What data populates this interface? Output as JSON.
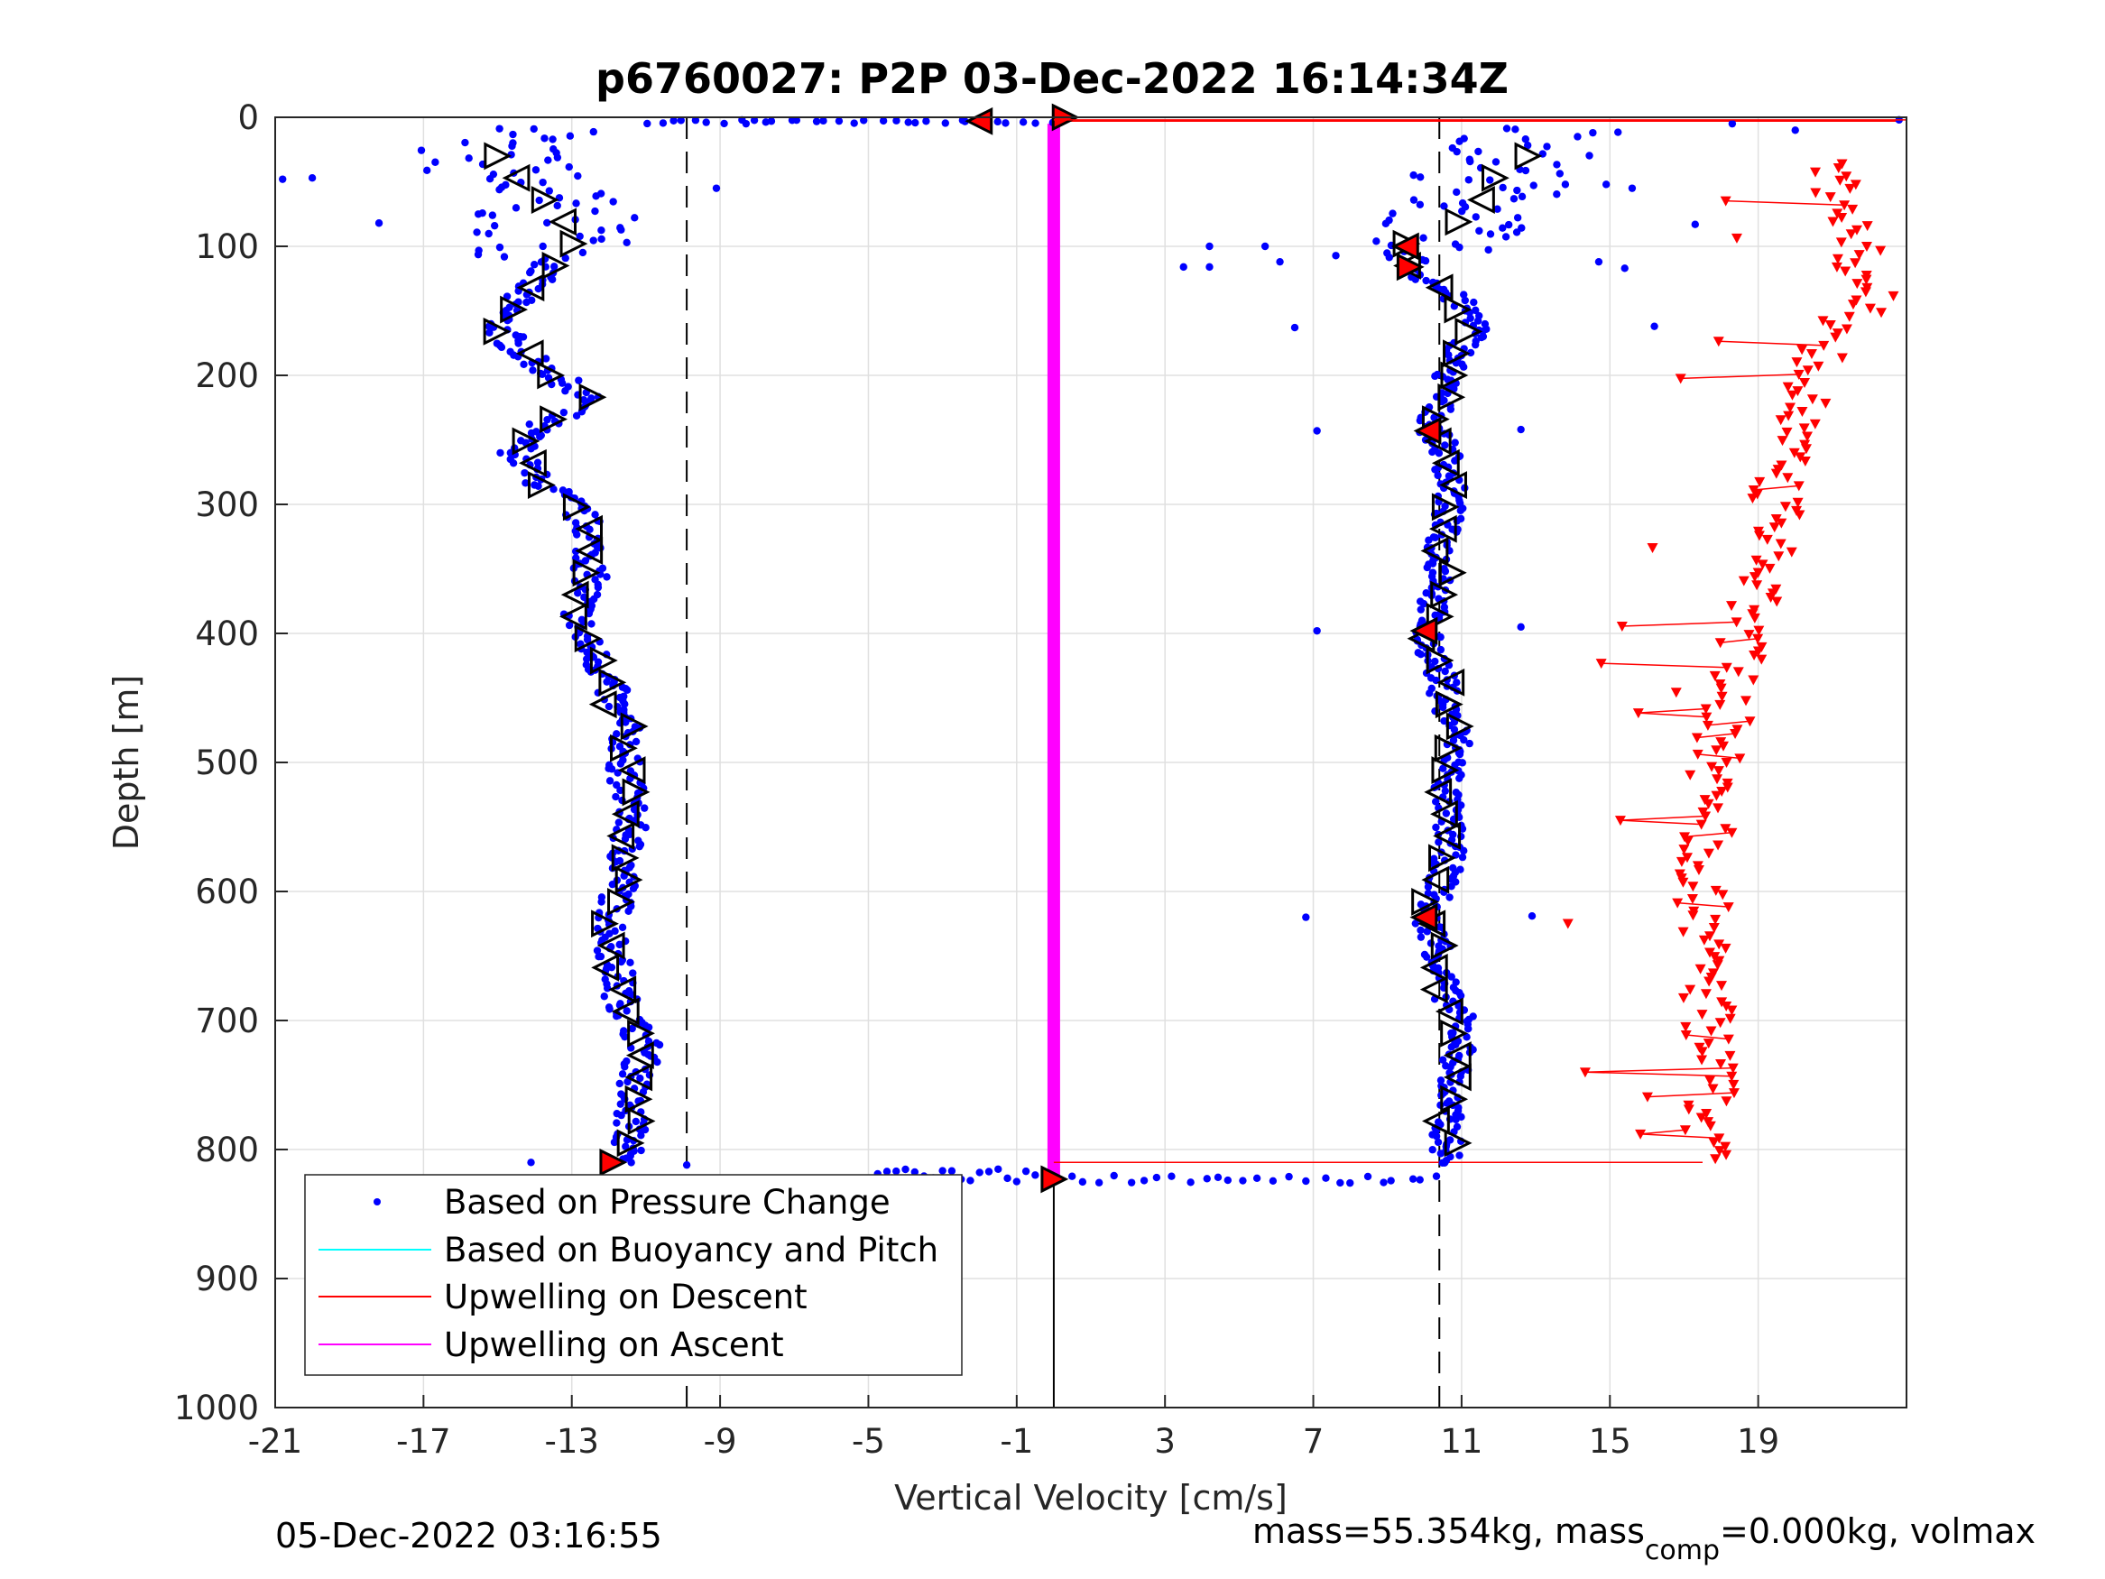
{
  "chart_data": {
    "type": "scatter",
    "title": "p6760027: P2P 03-Dec-2022 16:14:34Z",
    "xlabel": "Vertical Velocity [cm/s]",
    "ylabel": "Depth [m]",
    "xlim": [
      -21,
      23
    ],
    "ylim": [
      0,
      1000
    ],
    "y_reversed": true,
    "grid": true,
    "x_ticks": [
      "-21",
      "-17",
      "-13",
      "-9",
      "-5",
      "-1",
      "3",
      "7",
      "11",
      "15",
      "19"
    ],
    "x_tick_values": [
      -21,
      -17,
      -13,
      -9,
      -5,
      -1,
      3,
      7,
      11,
      15,
      19
    ],
    "y_ticks": [
      "0",
      "100",
      "200",
      "300",
      "400",
      "500",
      "600",
      "700",
      "800",
      "900",
      "1000"
    ],
    "y_tick_values": [
      0,
      100,
      200,
      300,
      400,
      500,
      600,
      700,
      800,
      900,
      1000
    ],
    "dashed_reference_lines_x": [
      -9.9,
      10.4
    ],
    "legend": {
      "position": "bottom-left",
      "entries": [
        {
          "label": "Based on Pressure Change",
          "color": "#0000ff",
          "marker": "dot"
        },
        {
          "label": "Based on Buoyancy and Pitch",
          "color": "#00ffff",
          "marker": "line"
        },
        {
          "label": "Upwelling on Descent",
          "color": "#ff0000",
          "marker": "line"
        },
        {
          "label": "Upwelling on Ascent",
          "color": "#ff00ff",
          "marker": "line"
        }
      ]
    },
    "colors": {
      "pressure": "#0000ff",
      "buoyancy": "#00ffff",
      "descent": "#ff0000",
      "ascent": "#ff00ff"
    },
    "series": [
      {
        "name": "Based on Pressure Change",
        "descent_profile": {
          "depth": [
            5,
            20,
            40,
            60,
            80,
            100,
            120,
            140,
            160,
            180,
            200,
            220,
            240,
            260,
            280,
            300,
            320,
            340,
            360,
            380,
            400,
            420,
            440,
            460,
            480,
            500,
            520,
            540,
            560,
            580,
            600,
            620,
            640,
            660,
            680,
            700,
            720,
            740,
            760,
            780,
            800,
            812
          ],
          "velocity": [
            -12.0,
            -15.5,
            -15.0,
            -14.0,
            -13.5,
            -13.2,
            -13.8,
            -14.5,
            -15.0,
            -14.5,
            -13.5,
            -12.5,
            -14.0,
            -14.5,
            -14.0,
            -13.0,
            -12.5,
            -12.5,
            -12.5,
            -12.8,
            -12.8,
            -12.3,
            -12.0,
            -11.8,
            -11.5,
            -11.6,
            -11.5,
            -11.4,
            -11.5,
            -11.6,
            -11.7,
            -11.9,
            -11.9,
            -11.8,
            -11.7,
            -11.4,
            -11.0,
            -11.2,
            -11.5,
            -11.4,
            -11.5,
            -11.8
          ]
        },
        "ascent_profile": {
          "depth": [
            5,
            20,
            40,
            60,
            80,
            100,
            120,
            140,
            160,
            180,
            200,
            220,
            240,
            260,
            280,
            300,
            320,
            340,
            360,
            380,
            400,
            420,
            440,
            460,
            480,
            500,
            520,
            540,
            560,
            580,
            600,
            620,
            640,
            660,
            680,
            700,
            720,
            740,
            760,
            780,
            800,
            812
          ],
          "velocity": [
            14.0,
            13.0,
            12.0,
            11.6,
            11.0,
            9.6,
            9.8,
            10.8,
            11.5,
            11.0,
            10.6,
            10.4,
            10.2,
            10.6,
            10.7,
            10.7,
            10.5,
            10.4,
            10.5,
            10.2,
            10.0,
            10.3,
            10.5,
            10.6,
            10.9,
            10.8,
            10.6,
            10.6,
            10.7,
            10.6,
            10.4,
            10.0,
            10.4,
            10.4,
            10.6,
            11.0,
            11.0,
            10.8,
            10.6,
            10.6,
            10.6,
            10.6
          ]
        }
      },
      {
        "name": "Upwelling on Descent",
        "depth": [
          40,
          90,
          140,
          170,
          200,
          240,
          280,
          320,
          360,
          400,
          440,
          480,
          520,
          560,
          600,
          640,
          680,
          720,
          760,
          800
        ],
        "velocity": [
          21.0,
          21.5,
          22.0,
          21.0,
          20.5,
          20.0,
          19.5,
          19.5,
          19.0,
          18.5,
          18.3,
          18.0,
          17.8,
          17.6,
          17.5,
          17.5,
          17.6,
          17.8,
          17.7,
          17.7
        ]
      },
      {
        "name": "Upwelling on Ascent",
        "depth": [
          5,
          825
        ],
        "velocity": [
          0.0,
          0.0
        ]
      }
    ]
  },
  "footer": {
    "timestamp": "05-Dec-2022 03:16:55",
    "mass_text": "mass=55.354kg, mass",
    "mass_sub": "comp",
    "mass_rest": "=0.000kg, volmax"
  }
}
